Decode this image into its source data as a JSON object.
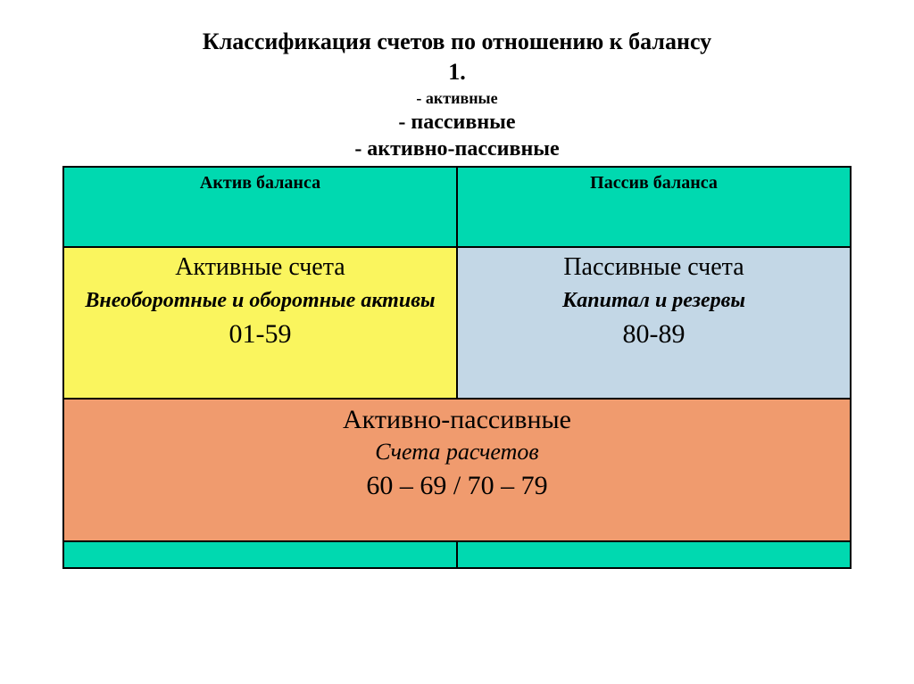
{
  "heading": {
    "title": "Классификация счетов по отношению к балансу",
    "number": "1.",
    "bullet1": "- активные",
    "bullet2": "- пассивные",
    "bullet3": "- активно-пассивные"
  },
  "table": {
    "header_bg": "#00d9b0",
    "active_bg": "#faf55e",
    "passive_bg": "#c3d7e6",
    "merged_bg": "#f09b6e",
    "footer_bg": "#00d9b0",
    "border_color": "#000000",
    "header_left": "Актив баланса",
    "header_right": "Пассив баланса",
    "active": {
      "title": "Активные счета",
      "subtitle": "Внеоборотные и оборотные активы",
      "range": "01-59"
    },
    "passive": {
      "title": "Пассивные счета",
      "subtitle": "Капитал и резервы",
      "range": "80-89"
    },
    "merged": {
      "title": "Активно-пассивные",
      "subtitle": "Счета расчетов",
      "range": "60 – 69 / 70 – 79"
    }
  }
}
